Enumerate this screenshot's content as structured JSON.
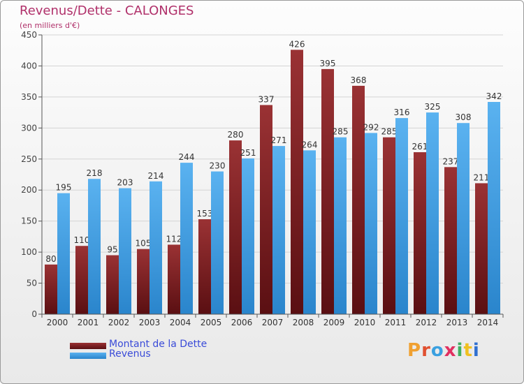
{
  "header": {
    "title": "Revenus/Dette - CALONGES",
    "subtitle": "(en milliers d'€)"
  },
  "colors": {
    "dette": "#7b1f22",
    "revenus": "#3f9fe4",
    "title": "#b0306a",
    "legend_text": "#3a4bd8"
  },
  "logo": {
    "text": "Proxiti",
    "colors": [
      "#f0a030",
      "#e05030",
      "#3aa0e0",
      "#e03060",
      "#40b060",
      "#f0c020",
      "#3070d0"
    ]
  },
  "chart_data": {
    "type": "bar",
    "title": "Revenus/Dette - CALONGES",
    "ylabel": "(en milliers d'€)",
    "categories": [
      "2000",
      "2001",
      "2002",
      "2003",
      "2004",
      "2005",
      "2006",
      "2007",
      "2008",
      "2009",
      "2010",
      "2011",
      "2012",
      "2013",
      "2014"
    ],
    "series": [
      {
        "name": "Montant de la Dette",
        "values": [
          80,
          110,
          95,
          105,
          112,
          153,
          280,
          337,
          426,
          395,
          368,
          285,
          261,
          237,
          211
        ]
      },
      {
        "name": "Revenus",
        "values": [
          195,
          218,
          203,
          214,
          244,
          230,
          251,
          271,
          264,
          285,
          292,
          316,
          325,
          308,
          342
        ]
      }
    ],
    "yticks": [
      0,
      50,
      100,
      150,
      200,
      250,
      300,
      350,
      400,
      450
    ],
    "ylim": [
      0,
      450
    ],
    "grid": true,
    "legend": "bottom-left"
  }
}
